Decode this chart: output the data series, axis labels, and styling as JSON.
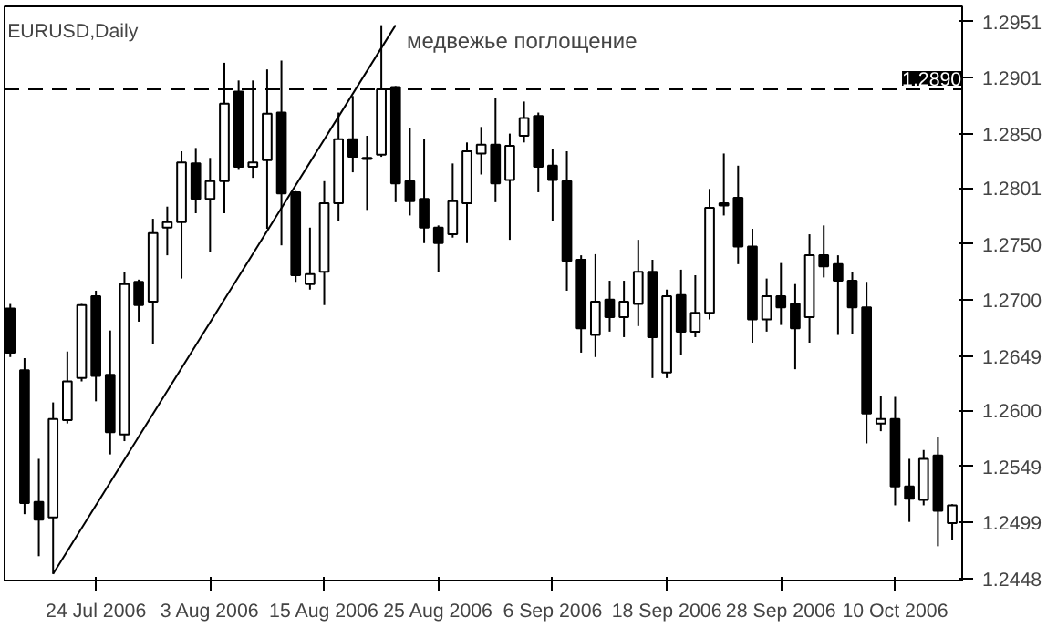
{
  "chart_data": {
    "type": "candlestick",
    "title": "EURUSD,Daily",
    "categories": [
      null,
      null,
      null,
      null,
      null,
      null,
      "24 Jul 2006",
      null,
      null,
      null,
      null,
      null,
      null,
      null,
      "3 Aug 2006",
      null,
      null,
      null,
      null,
      null,
      null,
      null,
      "15 Aug 2006",
      null,
      null,
      null,
      null,
      null,
      null,
      null,
      "25 Aug 2006",
      null,
      null,
      null,
      null,
      null,
      null,
      null,
      "6 Sep 2006",
      null,
      null,
      null,
      null,
      null,
      null,
      null,
      "18 Sep 2006",
      null,
      null,
      null,
      null,
      null,
      null,
      null,
      "28 Sep 2006",
      null,
      null,
      null,
      null,
      null,
      null,
      null,
      "10 Oct 2006",
      null,
      null,
      null,
      null
    ],
    "ohlc": [
      [
        1.2692,
        1.2696,
        1.2648,
        1.2652
      ],
      [
        1.2636,
        1.2647,
        1.2506,
        1.2516
      ],
      [
        1.2517,
        1.2556,
        1.2468,
        1.2501
      ],
      [
        1.2503,
        1.2607,
        1.2452,
        1.2592
      ],
      [
        1.2591,
        1.2653,
        1.2588,
        1.2626
      ],
      [
        1.2629,
        1.2696,
        1.2626,
        1.2695
      ],
      [
        1.2703,
        1.2708,
        1.2608,
        1.2631
      ],
      [
        1.2632,
        1.2672,
        1.256,
        1.258
      ],
      [
        1.2578,
        1.2725,
        1.2572,
        1.2714
      ],
      [
        1.2716,
        1.2718,
        1.268,
        1.2695
      ],
      [
        1.2698,
        1.2773,
        1.266,
        1.276
      ],
      [
        1.2765,
        1.2784,
        1.274,
        1.277
      ],
      [
        1.277,
        1.2834,
        1.2719,
        1.2824
      ],
      [
        1.2823,
        1.2837,
        1.2778,
        1.2791
      ],
      [
        1.2791,
        1.2828,
        1.2743,
        1.2807
      ],
      [
        1.2807,
        1.2914,
        1.2778,
        1.2877
      ],
      [
        1.2888,
        1.2898,
        1.2818,
        1.282
      ],
      [
        1.282,
        1.2898,
        1.281,
        1.2824
      ],
      [
        1.2826,
        1.2908,
        1.2764,
        1.2868
      ],
      [
        1.2869,
        1.2916,
        1.2749,
        1.2796
      ],
      [
        1.2797,
        1.2798,
        1.2716,
        1.2722
      ],
      [
        1.2714,
        1.2765,
        1.2709,
        1.2723
      ],
      [
        1.2725,
        1.2807,
        1.2695,
        1.2787
      ],
      [
        1.2787,
        1.2869,
        1.2771,
        1.2845
      ],
      [
        1.2845,
        1.2884,
        1.2815,
        1.2829
      ],
      [
        1.2828,
        1.2848,
        1.2781,
        1.2827
      ],
      [
        1.2831,
        1.2948,
        1.2829,
        1.289
      ],
      [
        1.2892,
        1.2893,
        1.2788,
        1.2805
      ],
      [
        1.2807,
        1.2855,
        1.2776,
        1.2789
      ],
      [
        1.2791,
        1.2845,
        1.2751,
        1.2765
      ],
      [
        1.2765,
        1.2767,
        1.2725,
        1.2751
      ],
      [
        1.2759,
        1.2823,
        1.2756,
        1.2789
      ],
      [
        1.2787,
        1.2842,
        1.2751,
        1.2834
      ],
      [
        1.2832,
        1.2856,
        1.2813,
        1.284
      ],
      [
        1.284,
        1.2882,
        1.2788,
        1.2805
      ],
      [
        1.2808,
        1.285,
        1.2754,
        1.2839
      ],
      [
        1.2848,
        1.2879,
        1.2842,
        1.2864
      ],
      [
        1.2866,
        1.2869,
        1.2797,
        1.282
      ],
      [
        1.2821,
        1.2836,
        1.2771,
        1.2808
      ],
      [
        1.2807,
        1.2834,
        1.2708,
        1.2735
      ],
      [
        1.2736,
        1.274,
        1.2652,
        1.2674
      ],
      [
        1.2668,
        1.2741,
        1.2648,
        1.2698
      ],
      [
        1.27,
        1.2717,
        1.2671,
        1.2684
      ],
      [
        1.2684,
        1.2717,
        1.2666,
        1.2698
      ],
      [
        1.2696,
        1.2754,
        1.2676,
        1.2725
      ],
      [
        1.2725,
        1.2736,
        1.2629,
        1.2666
      ],
      [
        1.2634,
        1.2709,
        1.2629,
        1.2703
      ],
      [
        1.2704,
        1.2727,
        1.265,
        1.2671
      ],
      [
        1.2671,
        1.2722,
        1.2666,
        1.2688
      ],
      [
        1.2688,
        1.28,
        1.2682,
        1.2783
      ],
      [
        1.2787,
        1.2832,
        1.2776,
        1.2785
      ],
      [
        1.2792,
        1.2821,
        1.2732,
        1.2748
      ],
      [
        1.2748,
        1.2764,
        1.2661,
        1.2682
      ],
      [
        1.2682,
        1.2719,
        1.2671,
        1.2703
      ],
      [
        1.2703,
        1.2733,
        1.2677,
        1.2693
      ],
      [
        1.2696,
        1.2714,
        1.2637,
        1.2674
      ],
      [
        1.2684,
        1.2759,
        1.2661,
        1.274
      ],
      [
        1.274,
        1.2767,
        1.272,
        1.273
      ],
      [
        1.2732,
        1.274,
        1.2668,
        1.2717
      ],
      [
        1.2717,
        1.2725,
        1.2669,
        1.2693
      ],
      [
        1.2693,
        1.2716,
        1.257,
        1.2597
      ],
      [
        1.2588,
        1.2613,
        1.2581,
        1.2592
      ],
      [
        1.2592,
        1.2612,
        1.2514,
        1.2531
      ],
      [
        1.2531,
        1.2556,
        1.2499,
        1.252
      ],
      [
        1.2519,
        1.2564,
        1.2514,
        1.2556
      ],
      [
        1.2559,
        1.2576,
        1.2477,
        1.2509
      ],
      [
        1.2498,
        1.2515,
        1.2483,
        1.2514
      ]
    ],
    "series": [
      {
        "type": "line",
        "color": "#000000",
        "values": [
          null,
          null,
          null,
          1.2452,
          null,
          null,
          null,
          null,
          null,
          null,
          null,
          null,
          null,
          null,
          null,
          null,
          null,
          null,
          null,
          null,
          null,
          null,
          null,
          null,
          null,
          null,
          null,
          1.2948,
          null,
          null,
          null,
          null,
          null,
          null,
          null,
          null,
          null,
          null,
          null,
          null,
          null,
          null,
          null,
          null,
          null,
          null,
          null,
          null,
          null,
          null,
          null,
          null,
          null,
          null,
          null,
          null,
          null,
          null,
          null,
          null,
          null,
          null,
          null,
          null,
          null,
          null,
          null
        ]
      }
    ],
    "ylim": [
      1.2446,
      1.2965
    ],
    "yticks": [
      1.2951,
      1.2901,
      {
        "value": 1.285,
        "label": "1.2850"
      },
      1.2801,
      {
        "value": 1.275,
        "label": "1.2750"
      },
      {
        "value": 1.27,
        "label": "1.2700"
      },
      1.2649,
      {
        "value": 1.26,
        "label": "1.2600"
      },
      1.2549,
      1.2499,
      1.2448
    ],
    "ref_lines": [
      {
        "axis": "y",
        "value": 1.289,
        "label": "1.2890",
        "color": "#000000",
        "line_style": "dashed"
      }
    ],
    "annotations": [
      "медвежье поглощение"
    ],
    "grid": false
  }
}
